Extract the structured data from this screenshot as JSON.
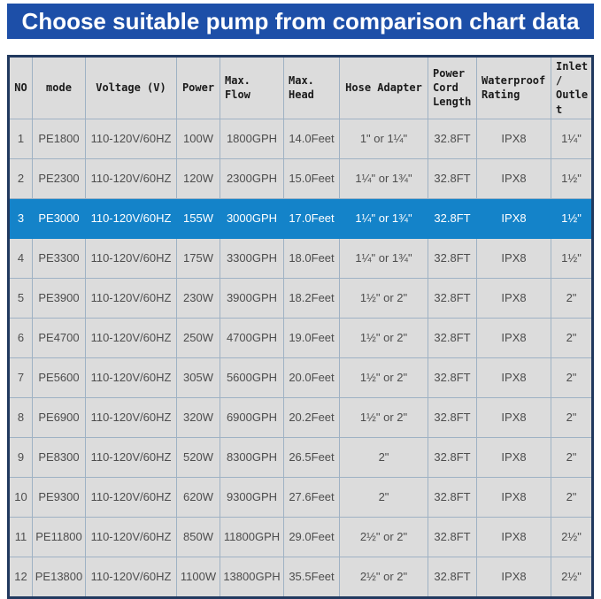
{
  "banner": {
    "title": "Choose suitable pump from comparison chart data"
  },
  "colors": {
    "banner_bg": "#1d4fa8",
    "banner_text": "#ffffff",
    "highlight_row": "#1483c9",
    "highlight_text": "#ffffff",
    "cell_bg": "#dcdcdc",
    "inner_border": "#9fb2c4",
    "outer_border": "#21395f",
    "body_text": "#4d4d4d"
  },
  "chart_data": {
    "type": "table",
    "title": "Choose suitable pump from comparison chart data",
    "highlighted_row_no": 3,
    "columns": [
      "NO",
      "mode",
      "Voltage (V)",
      "Power",
      "Max. Flow",
      "Max. Head",
      "Hose Adapter",
      "Power Cord Length",
      "Waterproof Rating",
      "Inlet/ Outlet"
    ],
    "rows": [
      [
        "1",
        "PE1800",
        "110-120V/60HZ",
        "100W",
        "1800GPH",
        "14.0Feet",
        "1\" or 1¼\"",
        "32.8FT",
        "IPX8",
        "1¼\""
      ],
      [
        "2",
        "PE2300",
        "110-120V/60HZ",
        "120W",
        "2300GPH",
        "15.0Feet",
        "1¼\" or 1¾\"",
        "32.8FT",
        "IPX8",
        "1½\""
      ],
      [
        "3",
        "PE3000",
        "110-120V/60HZ",
        "155W",
        "3000GPH",
        "17.0Feet",
        "1¼\" or 1¾\"",
        "32.8FT",
        "IPX8",
        "1½\""
      ],
      [
        "4",
        "PE3300",
        "110-120V/60HZ",
        "175W",
        "3300GPH",
        "18.0Feet",
        "1¼\" or 1¾\"",
        "32.8FT",
        "IPX8",
        "1½\""
      ],
      [
        "5",
        "PE3900",
        "110-120V/60HZ",
        "230W",
        "3900GPH",
        "18.2Feet",
        "1½\" or 2\"",
        "32.8FT",
        "IPX8",
        "2\""
      ],
      [
        "6",
        "PE4700",
        "110-120V/60HZ",
        "250W",
        "4700GPH",
        "19.0Feet",
        "1½\" or 2\"",
        "32.8FT",
        "IPX8",
        "2\""
      ],
      [
        "7",
        "PE5600",
        "110-120V/60HZ",
        "305W",
        "5600GPH",
        "20.0Feet",
        "1½\" or 2\"",
        "32.8FT",
        "IPX8",
        "2\""
      ],
      [
        "8",
        "PE6900",
        "110-120V/60HZ",
        "320W",
        "6900GPH",
        "20.2Feet",
        "1½\" or 2\"",
        "32.8FT",
        "IPX8",
        "2\""
      ],
      [
        "9",
        "PE8300",
        "110-120V/60HZ",
        "520W",
        "8300GPH",
        "26.5Feet",
        "2\"",
        "32.8FT",
        "IPX8",
        "2\""
      ],
      [
        "10",
        "PE9300",
        "110-120V/60HZ",
        "620W",
        "9300GPH",
        "27.6Feet",
        "2\"",
        "32.8FT",
        "IPX8",
        "2\""
      ],
      [
        "11",
        "PE11800",
        "110-120V/60HZ",
        "850W",
        "11800GPH",
        "29.0Feet",
        "2½\" or 2\"",
        "32.8FT",
        "IPX8",
        "2½\""
      ],
      [
        "12",
        "PE13800",
        "110-120V/60HZ",
        "1100W",
        "13800GPH",
        "35.5Feet",
        "2½\" or 2\"",
        "32.8FT",
        "IPX8",
        "2½\""
      ]
    ]
  }
}
